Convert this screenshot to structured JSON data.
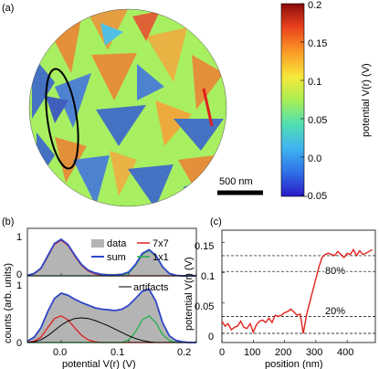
{
  "panels": {
    "a": {
      "label": "(a)",
      "scale_bar": "500 nm",
      "colorbar": {
        "label": "potential V(r) (V)",
        "ticks": [
          "0.2",
          "0.15",
          "0.1",
          "0.05",
          "0.0",
          "-0.05"
        ],
        "range": [
          -0.05,
          0.2
        ],
        "colors": [
          "#2a19c8",
          "#2f6de6",
          "#3fb4f0",
          "#54e0b0",
          "#a8ee52",
          "#f6e83a",
          "#fb9a26",
          "#e9421d",
          "#8b0b0b"
        ]
      },
      "description_colors": {
        "surface_high": "#f07a22",
        "surface_low": "#2f56c8",
        "boundary": "#a8ee52"
      }
    },
    "b": {
      "label": "(b)",
      "ylabel": "counts (arb. units)",
      "xlabel": "potential V(r) (V)",
      "top_yticks": [
        "1",
        "0"
      ],
      "bottom_yticks": [
        "1",
        "0"
      ],
      "xticks": [
        "0.0",
        "0.1",
        "0.2"
      ],
      "legend_top": [
        {
          "label": "data",
          "color": "#b4b4b4"
        },
        {
          "label": "7x7",
          "color": "#e0201c"
        },
        {
          "label": "sum",
          "color": "#2f46c8"
        },
        {
          "label": "1x1",
          "color": "#22b04a"
        }
      ],
      "legend_bottom": [
        {
          "label": "artifacts",
          "color": "#000000"
        }
      ]
    },
    "c": {
      "label": "(c)",
      "ylabel": "potential V(r) (V)",
      "xlabel": "position (nm)",
      "yticks": [
        "0.15",
        "0.1",
        "0.05",
        "0"
      ],
      "xticks": [
        "0",
        "100",
        "200",
        "300",
        "400"
      ],
      "annotations": [
        "80%",
        "20%"
      ]
    }
  },
  "chart_data": [
    {
      "type": "area",
      "panel": "b-top",
      "xlabel": "potential V(r) (V)",
      "ylabel": "counts (arb. units)",
      "xlim": [
        -0.05,
        0.2
      ],
      "ylim": [
        0,
        1
      ],
      "x": [
        -0.05,
        -0.04,
        -0.03,
        -0.02,
        -0.01,
        0.0,
        0.01,
        0.02,
        0.03,
        0.04,
        0.05,
        0.06,
        0.07,
        0.08,
        0.09,
        0.1,
        0.11,
        0.12,
        0.13,
        0.14,
        0.15,
        0.16,
        0.17,
        0.18,
        0.19,
        0.2
      ],
      "series": [
        {
          "name": "data",
          "values": [
            0.01,
            0.05,
            0.17,
            0.43,
            0.68,
            0.78,
            0.67,
            0.45,
            0.26,
            0.14,
            0.08,
            0.05,
            0.04,
            0.04,
            0.05,
            0.09,
            0.24,
            0.48,
            0.56,
            0.44,
            0.2,
            0.06,
            0.02,
            0.0,
            0.0,
            0.0
          ]
        },
        {
          "name": "7x7",
          "values": [
            0.0,
            0.04,
            0.15,
            0.4,
            0.66,
            0.75,
            0.64,
            0.42,
            0.22,
            0.1,
            0.04,
            0.01,
            0.0,
            0.0,
            0.0,
            0.0,
            0.0,
            0.0,
            0.0,
            0.0,
            0.0,
            0.0,
            0.0,
            0.0,
            0.0,
            0.0
          ]
        },
        {
          "name": "1x1",
          "values": [
            0.0,
            0.0,
            0.0,
            0.0,
            0.0,
            0.0,
            0.0,
            0.0,
            0.0,
            0.0,
            0.0,
            0.0,
            0.0,
            0.0,
            0.01,
            0.06,
            0.22,
            0.45,
            0.53,
            0.42,
            0.18,
            0.05,
            0.01,
            0.0,
            0.0,
            0.0
          ]
        },
        {
          "name": "sum",
          "values": [
            0.01,
            0.05,
            0.16,
            0.42,
            0.68,
            0.77,
            0.66,
            0.44,
            0.24,
            0.12,
            0.06,
            0.03,
            0.02,
            0.02,
            0.03,
            0.08,
            0.24,
            0.47,
            0.55,
            0.43,
            0.19,
            0.05,
            0.01,
            0.0,
            0.0,
            0.0
          ]
        }
      ]
    },
    {
      "type": "area",
      "panel": "b-bottom",
      "xlabel": "potential V(r) (V)",
      "ylabel": "counts (arb. units)",
      "xlim": [
        -0.05,
        0.2
      ],
      "ylim": [
        0,
        1
      ],
      "x": [
        -0.05,
        -0.04,
        -0.03,
        -0.02,
        -0.01,
        0.0,
        0.01,
        0.02,
        0.03,
        0.04,
        0.05,
        0.06,
        0.07,
        0.08,
        0.09,
        0.1,
        0.11,
        0.12,
        0.13,
        0.14,
        0.15,
        0.16,
        0.17,
        0.18,
        0.19,
        0.2
      ],
      "series": [
        {
          "name": "data",
          "values": [
            0.02,
            0.08,
            0.22,
            0.46,
            0.66,
            0.74,
            0.71,
            0.65,
            0.6,
            0.56,
            0.52,
            0.5,
            0.49,
            0.48,
            0.5,
            0.56,
            0.66,
            0.77,
            0.8,
            0.62,
            0.3,
            0.1,
            0.03,
            0.01,
            0.0,
            0.0
          ]
        },
        {
          "name": "7x7",
          "values": [
            0.0,
            0.02,
            0.08,
            0.22,
            0.36,
            0.4,
            0.34,
            0.22,
            0.11,
            0.04,
            0.01,
            0.0,
            0.0,
            0.0,
            0.0,
            0.0,
            0.0,
            0.0,
            0.0,
            0.0,
            0.0,
            0.0,
            0.0,
            0.0,
            0.0,
            0.0
          ]
        },
        {
          "name": "1x1",
          "values": [
            0.0,
            0.0,
            0.0,
            0.0,
            0.0,
            0.0,
            0.0,
            0.0,
            0.0,
            0.0,
            0.0,
            0.0,
            0.0,
            0.0,
            0.0,
            0.04,
            0.16,
            0.34,
            0.4,
            0.3,
            0.12,
            0.03,
            0.0,
            0.0,
            0.0,
            0.0
          ]
        },
        {
          "name": "artifacts",
          "values": [
            0.0,
            0.01,
            0.04,
            0.1,
            0.18,
            0.26,
            0.32,
            0.36,
            0.37,
            0.36,
            0.33,
            0.29,
            0.25,
            0.2,
            0.15,
            0.1,
            0.06,
            0.03,
            0.01,
            0.0,
            0.0,
            0.0,
            0.0,
            0.0,
            0.0,
            0.0
          ]
        },
        {
          "name": "sum",
          "values": [
            0.02,
            0.08,
            0.22,
            0.46,
            0.66,
            0.74,
            0.71,
            0.65,
            0.6,
            0.56,
            0.52,
            0.5,
            0.49,
            0.48,
            0.5,
            0.56,
            0.66,
            0.77,
            0.8,
            0.62,
            0.3,
            0.1,
            0.03,
            0.01,
            0.0,
            0.0
          ]
        }
      ]
    },
    {
      "type": "line",
      "panel": "c",
      "xlabel": "position (nm)",
      "ylabel": "potential V(r) (V)",
      "xlim": [
        0,
        490
      ],
      "ylim": [
        -0.015,
        0.17
      ],
      "grid": false,
      "reference_lines": [
        0.0,
        0.028,
        0.102,
        0.128
      ],
      "x": [
        0,
        10,
        20,
        30,
        40,
        50,
        60,
        70,
        80,
        90,
        100,
        110,
        120,
        130,
        140,
        150,
        160,
        170,
        180,
        190,
        200,
        210,
        220,
        230,
        240,
        250,
        260,
        270,
        280,
        290,
        300,
        310,
        320,
        330,
        340,
        350,
        360,
        370,
        380,
        390,
        400,
        410,
        420,
        430,
        440,
        450,
        460,
        470,
        480
      ],
      "values": [
        0.02,
        0.012,
        0.016,
        0.006,
        0.01,
        0.012,
        0.02,
        0.01,
        0.008,
        0.016,
        0.002,
        0.014,
        0.02,
        0.022,
        0.018,
        0.025,
        0.018,
        0.03,
        0.028,
        0.03,
        0.034,
        0.036,
        0.04,
        0.035,
        0.03,
        0.032,
        0.0,
        0.03,
        0.05,
        0.07,
        0.09,
        0.11,
        0.125,
        0.13,
        0.132,
        0.13,
        0.128,
        0.135,
        0.13,
        0.125,
        0.132,
        0.13,
        0.138,
        0.128,
        0.136,
        0.13,
        0.132,
        0.135,
        0.138
      ]
    }
  ]
}
